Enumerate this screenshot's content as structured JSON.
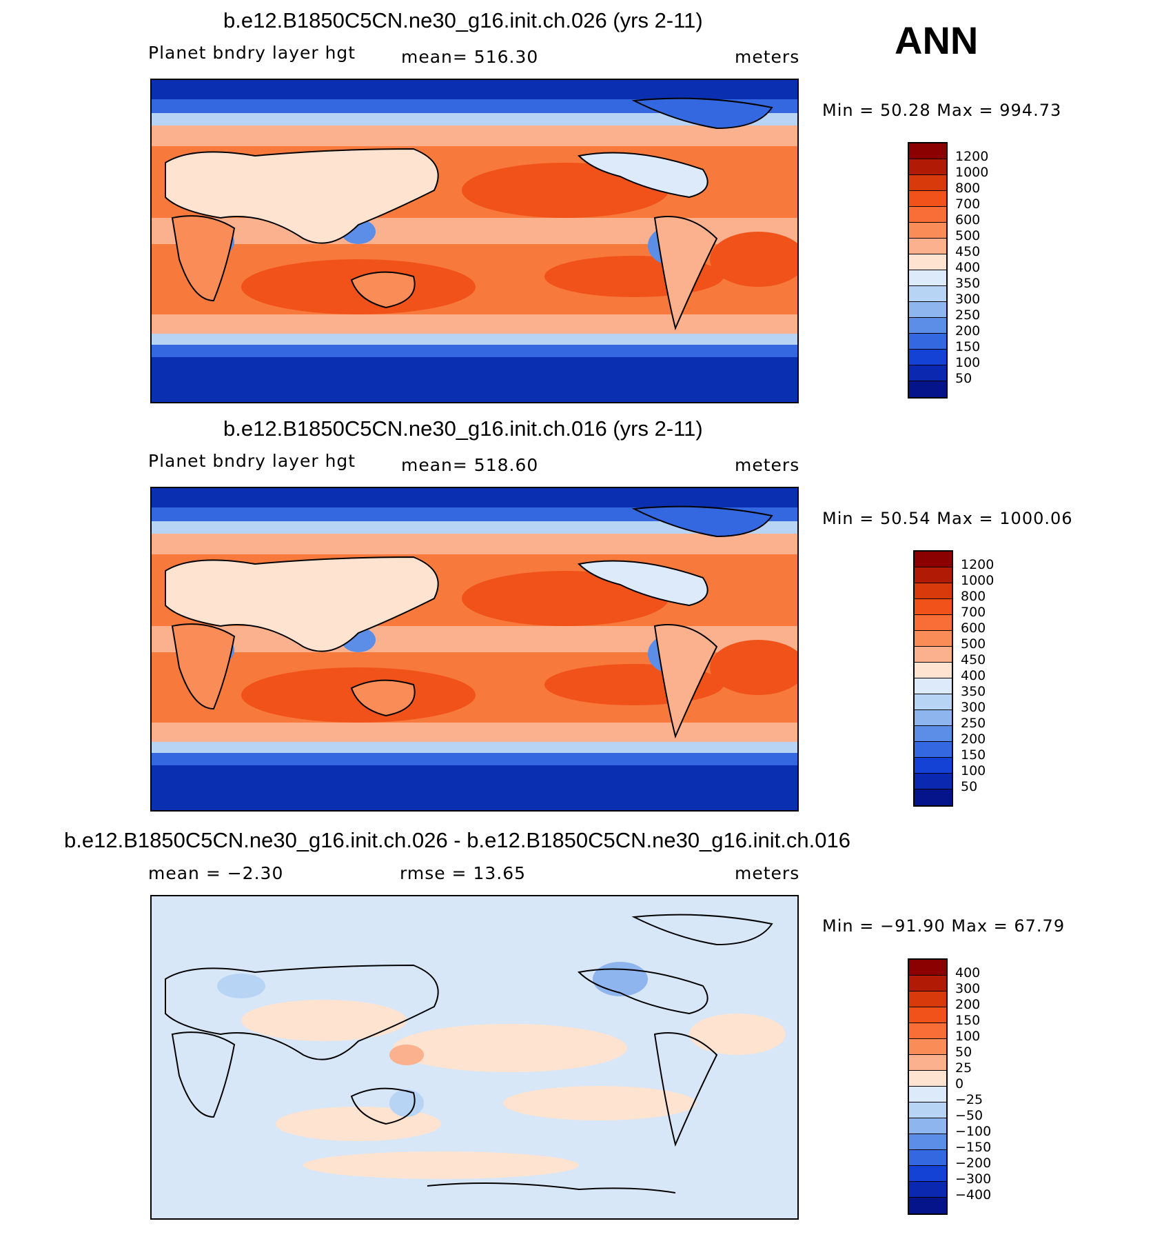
{
  "season": "ANN",
  "palettes": {
    "pos14": [
      "#e8f1fb"
    ],
    "blue_red": [
      "#8b0000",
      "#b11a05",
      "#d83a0c",
      "#f0521a",
      "#f86e36",
      "#fa8c58",
      "#fbb08e",
      "#fde3d0",
      "#ddeaf9",
      "#b8d4f5",
      "#8fb5ef",
      "#5c8ee8",
      "#3468e0",
      "#1442d4",
      "#0a28b0",
      "#05148a"
    ],
    "map_ocean_base": "#f7793c",
    "map_polar": "#0a2fb0",
    "diff_base": "#d7e7f8",
    "coast": "#000000"
  },
  "panels": [
    {
      "id": "panel1",
      "title": "b.e12.B1850C5CN.ne30_g16.init.ch.026 (yrs 2-11)",
      "left_label": "Planet bndry layer hgt",
      "center_label": "mean=  516.30",
      "units": "meters",
      "minmax": "Min =   50.28  Max  =  994.73",
      "colorbar_labels": [
        "1200",
        "1000",
        "800",
        "700",
        "600",
        "500",
        "450",
        "400",
        "350",
        "300",
        "250",
        "200",
        "150",
        "100",
        "50"
      ]
    },
    {
      "id": "panel2",
      "title": "b.e12.B1850C5CN.ne30_g16.init.ch.016 (yrs 2-11)",
      "left_label": "Planet bndry layer hgt",
      "center_label": "mean=  518.60",
      "units": "meters",
      "minmax": "Min =   50.54  Max  =  1000.06",
      "colorbar_labels": [
        "1200",
        "1000",
        "800",
        "700",
        "600",
        "500",
        "450",
        "400",
        "350",
        "300",
        "250",
        "200",
        "150",
        "100",
        "50"
      ]
    },
    {
      "id": "panel3",
      "title": "b.e12.B1850C5CN.ne30_g16.init.ch.026 - b.e12.B1850C5CN.ne30_g16.init.ch.016",
      "left_label": "mean =    −2.30",
      "center_label": "rmse =    13.65",
      "units": "meters",
      "minmax": "Min = −91.90  Max =   67.79",
      "colorbar_labels": [
        "400",
        "300",
        "200",
        "150",
        "100",
        "50",
        "25",
        "0",
        "−25",
        "−50",
        "−100",
        "−150",
        "−200",
        "−300",
        "−400"
      ]
    }
  ]
}
